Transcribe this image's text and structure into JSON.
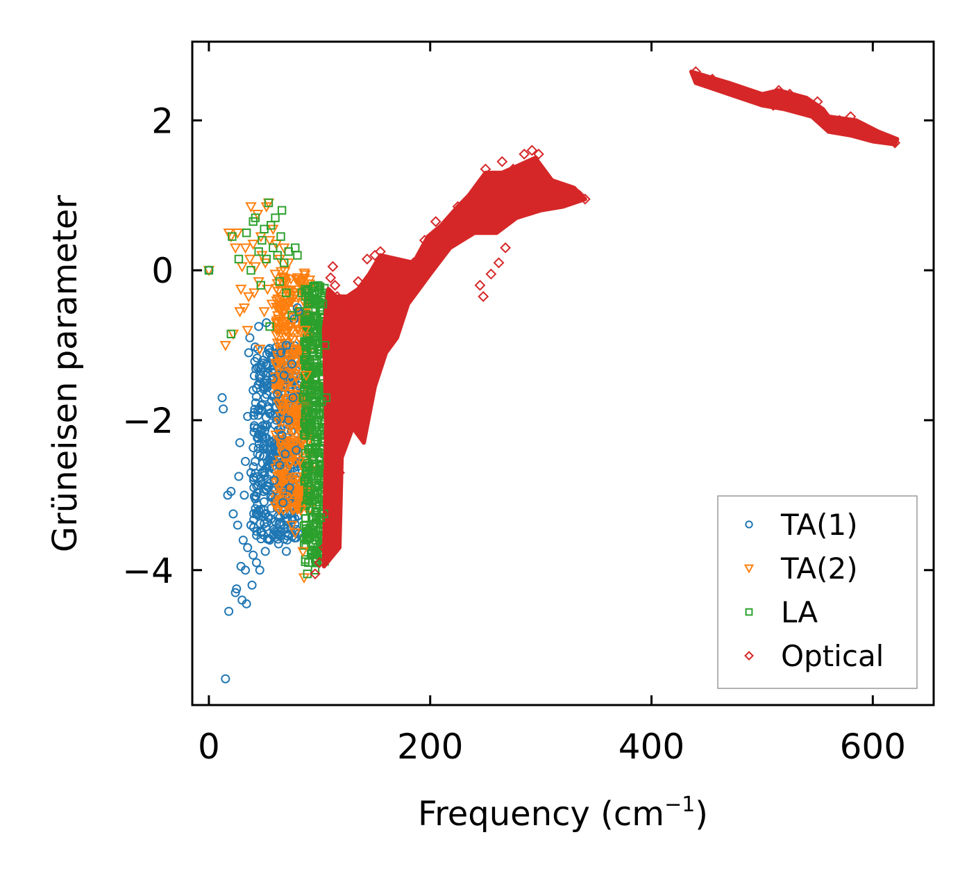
{
  "chart_data": {
    "type": "scatter",
    "title": "",
    "xlabel": "Frequency (cm",
    "xlabel_sup": "−1",
    "xlabel_suffix": ")",
    "ylabel": "Grüneisen parameter",
    "xlim": [
      -15,
      655
    ],
    "ylim": [
      -5.8,
      3.05
    ],
    "xticks": [
      0,
      200,
      400,
      600
    ],
    "xtick_labels": [
      "0",
      "200",
      "400",
      "600"
    ],
    "yticks": [
      -4,
      -2,
      0,
      2
    ],
    "ytick_labels": [
      "−4",
      "−2",
      "0",
      "2"
    ],
    "grid": false,
    "legend_position": "bottom-right",
    "series": [
      {
        "name": "TA(1)",
        "marker": "circle",
        "color": "#1f77b4",
        "points": [
          [
            0,
            0.0
          ],
          [
            12,
            -1.7
          ],
          [
            13,
            -1.85
          ],
          [
            15,
            -5.45
          ],
          [
            17,
            -3.0
          ],
          [
            18,
            -4.55
          ],
          [
            20,
            -2.95
          ],
          [
            22,
            -3.25
          ],
          [
            24,
            -4.3
          ],
          [
            25,
            -4.25
          ],
          [
            26,
            -3.4
          ],
          [
            27,
            -2.75
          ],
          [
            28,
            -2.3
          ],
          [
            29,
            -3.95
          ],
          [
            30,
            -4.4
          ],
          [
            31,
            -3.6
          ],
          [
            32,
            -3.0
          ],
          [
            33,
            -4.0
          ],
          [
            33,
            -2.55
          ],
          [
            34,
            -4.45
          ],
          [
            35,
            -3.7
          ],
          [
            35,
            -1.95
          ],
          [
            36,
            -1.1
          ],
          [
            37,
            -0.9
          ],
          [
            38,
            -3.4
          ],
          [
            38,
            -2.7
          ],
          [
            39,
            -4.2
          ],
          [
            40,
            -3.8
          ],
          [
            40,
            -1.6
          ],
          [
            41,
            -2.1
          ],
          [
            42,
            -3.05
          ],
          [
            43,
            -3.9
          ],
          [
            44,
            -2.45
          ],
          [
            45,
            -0.75
          ],
          [
            46,
            -4.0
          ],
          [
            47,
            -3.5
          ],
          [
            48,
            -2.85
          ],
          [
            48,
            -2.2
          ],
          [
            49,
            -1.2
          ],
          [
            50,
            -3.2
          ],
          [
            51,
            -3.75
          ],
          [
            52,
            -0.7
          ],
          [
            53,
            -2.55
          ],
          [
            54,
            -1.85
          ],
          [
            55,
            -3.6
          ],
          [
            56,
            -3.0
          ],
          [
            57,
            -2.3
          ],
          [
            58,
            -1.45
          ],
          [
            59,
            -2.8
          ],
          [
            60,
            -3.35
          ],
          [
            61,
            -2.0
          ],
          [
            62,
            -1.65
          ],
          [
            63,
            -3.65
          ],
          [
            64,
            -2.6
          ],
          [
            65,
            -1.1
          ],
          [
            66,
            -2.2
          ],
          [
            67,
            -3.1
          ],
          [
            68,
            -1.4
          ],
          [
            69,
            -2.45
          ],
          [
            70,
            -3.75
          ],
          [
            70,
            -1.0
          ],
          [
            72,
            -2.0
          ],
          [
            73,
            -2.9
          ],
          [
            74,
            -3.45
          ],
          [
            75,
            -1.25
          ],
          [
            76,
            -1.7
          ],
          [
            77,
            -0.65
          ],
          [
            78,
            -3.5
          ],
          [
            79,
            -2.4
          ],
          [
            80,
            -0.5
          ],
          [
            81,
            -0.55
          ]
        ],
        "cluster": {
          "x_range": [
            40,
            82
          ],
          "y_range": [
            -3.6,
            -1.0
          ],
          "center": [
            60,
            -2.2
          ]
        }
      },
      {
        "name": "TA(2)",
        "marker": "triangle-down",
        "color": "#ff7f0e",
        "points": [
          [
            0,
            0.0
          ],
          [
            15,
            -1.0
          ],
          [
            18,
            0.5
          ],
          [
            20,
            0.45
          ],
          [
            22,
            -0.85
          ],
          [
            24,
            0.3
          ],
          [
            26,
            0.5
          ],
          [
            28,
            -0.55
          ],
          [
            29,
            -0.25
          ],
          [
            30,
            0.05
          ],
          [
            32,
            -0.5
          ],
          [
            33,
            0.3
          ],
          [
            35,
            -0.8
          ],
          [
            36,
            -0.35
          ],
          [
            37,
            0.15
          ],
          [
            38,
            0.85
          ],
          [
            40,
            0.35
          ],
          [
            41,
            -0.3
          ],
          [
            42,
            0.05
          ],
          [
            44,
            0.75
          ],
          [
            45,
            -0.15
          ],
          [
            46,
            -1.05
          ],
          [
            47,
            0.45
          ],
          [
            48,
            0.2
          ],
          [
            50,
            -0.55
          ],
          [
            51,
            0.1
          ],
          [
            52,
            0.85
          ],
          [
            53,
            -0.25
          ],
          [
            54,
            0.9
          ],
          [
            55,
            0.4
          ],
          [
            57,
            -0.45
          ],
          [
            58,
            0.55
          ],
          [
            60,
            -0.05
          ],
          [
            61,
            0.35
          ],
          [
            63,
            -0.65
          ],
          [
            64,
            0.15
          ],
          [
            66,
            -0.35
          ],
          [
            68,
            0.3
          ],
          [
            70,
            -0.5
          ],
          [
            72,
            0.1
          ],
          [
            74,
            -0.75
          ],
          [
            75,
            -3.4
          ],
          [
            76,
            -0.3
          ],
          [
            78,
            -3.5
          ],
          [
            80,
            -3.0
          ],
          [
            82,
            -2.55
          ],
          [
            83,
            -3.2
          ],
          [
            85,
            -3.75
          ],
          [
            86,
            -4.1
          ],
          [
            87,
            -0.8
          ],
          [
            88,
            -1.4
          ]
        ],
        "cluster": {
          "x_range": [
            60,
            92
          ],
          "y_range": [
            -3.2,
            0.0
          ],
          "center": [
            76,
            -1.4
          ]
        }
      },
      {
        "name": "LA",
        "marker": "square",
        "color": "#2ca02c",
        "points": [
          [
            0,
            0.0
          ],
          [
            20,
            -0.85
          ],
          [
            21,
            0.45
          ],
          [
            27,
            0.15
          ],
          [
            34,
            0.5
          ],
          [
            38,
            0.0
          ],
          [
            40,
            0.65
          ],
          [
            42,
            0.7
          ],
          [
            45,
            0.25
          ],
          [
            47,
            -0.2
          ],
          [
            48,
            0.4
          ],
          [
            50,
            0.55
          ],
          [
            52,
            0.15
          ],
          [
            54,
            0.9
          ],
          [
            55,
            -0.75
          ],
          [
            56,
            0.6
          ],
          [
            58,
            0.3
          ],
          [
            60,
            0.7
          ],
          [
            62,
            0.2
          ],
          [
            64,
            -0.15
          ],
          [
            65,
            0.45
          ],
          [
            66,
            0.8
          ],
          [
            68,
            0.1
          ],
          [
            70,
            -0.3
          ],
          [
            72,
            0.25
          ],
          [
            75,
            -0.6
          ],
          [
            78,
            0.3
          ],
          [
            80,
            0.2
          ],
          [
            82,
            -0.55
          ],
          [
            84,
            -0.3
          ],
          [
            85,
            -1.7
          ],
          [
            87,
            -2.8
          ],
          [
            88,
            -3.6
          ],
          [
            89,
            -4.05
          ],
          [
            90,
            -3.9
          ],
          [
            92,
            -2.3
          ],
          [
            93,
            -3.3
          ],
          [
            94,
            -3.65
          ],
          [
            95,
            -1.7
          ],
          [
            96,
            -4.0
          ],
          [
            97,
            -3.75
          ],
          [
            98,
            -0.8
          ],
          [
            100,
            -2.6
          ],
          [
            101,
            -3.3
          ],
          [
            102,
            -1.75
          ],
          [
            103,
            -0.45
          ],
          [
            104,
            -3.25
          ],
          [
            105,
            -1.0
          ],
          [
            106,
            -1.7
          ]
        ],
        "cluster": {
          "x_range": [
            86,
            105
          ],
          "y_range": [
            -3.9,
            -0.2
          ],
          "center": [
            96,
            -2.0
          ]
        }
      },
      {
        "name": "Optical",
        "marker": "diamond",
        "color": "#d62728",
        "points": [
          [
            96,
            -4.05
          ],
          [
            100,
            -3.9
          ],
          [
            104,
            -3.7
          ],
          [
            108,
            -3.2
          ],
          [
            110,
            -0.1
          ],
          [
            112,
            0.05
          ],
          [
            114,
            -0.2
          ],
          [
            116,
            -0.35
          ],
          [
            118,
            -2.7
          ],
          [
            120,
            -1.0
          ],
          [
            128,
            -0.45
          ],
          [
            135,
            -0.15
          ],
          [
            143,
            0.15
          ],
          [
            150,
            0.2
          ],
          [
            155,
            0.25
          ],
          [
            160,
            -0.15
          ],
          [
            170,
            0.05
          ],
          [
            185,
            0.1
          ],
          [
            195,
            0.4
          ],
          [
            205,
            0.65
          ],
          [
            215,
            0.55
          ],
          [
            225,
            0.85
          ],
          [
            235,
            0.95
          ],
          [
            240,
            1.0
          ],
          [
            245,
            -0.2
          ],
          [
            248,
            -0.35
          ],
          [
            250,
            1.35
          ],
          [
            255,
            -0.05
          ],
          [
            260,
            1.25
          ],
          [
            262,
            0.1
          ],
          [
            265,
            1.45
          ],
          [
            268,
            0.3
          ],
          [
            275,
            1.35
          ],
          [
            285,
            1.55
          ],
          [
            292,
            1.6
          ],
          [
            298,
            1.55
          ],
          [
            305,
            1.15
          ],
          [
            315,
            1.1
          ],
          [
            325,
            1.05
          ],
          [
            335,
            1.0
          ],
          [
            340,
            0.95
          ],
          [
            440,
            2.65
          ],
          [
            455,
            2.55
          ],
          [
            470,
            2.45
          ],
          [
            485,
            2.35
          ],
          [
            500,
            2.25
          ],
          [
            510,
            2.2
          ],
          [
            515,
            2.4
          ],
          [
            525,
            2.35
          ],
          [
            530,
            2.3
          ],
          [
            540,
            2.2
          ],
          [
            550,
            2.25
          ],
          [
            555,
            2.0
          ],
          [
            560,
            1.95
          ],
          [
            570,
            2.0
          ],
          [
            580,
            2.05
          ],
          [
            590,
            1.9
          ],
          [
            600,
            1.8
          ],
          [
            610,
            1.75
          ],
          [
            620,
            1.7
          ]
        ],
        "cluster_polygons": [
          [
            [
              104,
              -3.95
            ],
            [
              118,
              -3.7
            ],
            [
              120,
              -2.5
            ],
            [
              130,
              -2.1
            ],
            [
              140,
              -2.3
            ],
            [
              150,
              -1.55
            ],
            [
              160,
              -1.1
            ],
            [
              170,
              -0.9
            ],
            [
              180,
              -0.45
            ],
            [
              200,
              -0.05
            ],
            [
              218,
              0.3
            ],
            [
              240,
              0.5
            ],
            [
              260,
              0.5
            ],
            [
              278,
              0.7
            ],
            [
              300,
              0.8
            ],
            [
              320,
              0.85
            ],
            [
              340,
              0.95
            ],
            [
              330,
              1.1
            ],
            [
              310,
              1.2
            ],
            [
              295,
              1.5
            ],
            [
              280,
              1.4
            ],
            [
              265,
              1.3
            ],
            [
              250,
              1.3
            ],
            [
              235,
              1.0
            ],
            [
              225,
              0.85
            ],
            [
              210,
              0.6
            ],
            [
              198,
              0.45
            ],
            [
              185,
              0.1
            ],
            [
              170,
              0.15
            ],
            [
              155,
              0.2
            ],
            [
              145,
              -0.05
            ],
            [
              135,
              -0.25
            ],
            [
              125,
              -0.35
            ],
            [
              115,
              -0.35
            ],
            [
              108,
              -0.25
            ],
            [
              104,
              -0.8
            ],
            [
              106,
              -2.0
            ]
          ],
          [
            [
              436,
              2.65
            ],
            [
              470,
              2.5
            ],
            [
              500,
              2.35
            ],
            [
              515,
              2.4
            ],
            [
              540,
              2.3
            ],
            [
              555,
              2.15
            ],
            [
              560,
              2.05
            ],
            [
              585,
              2.0
            ],
            [
              605,
              1.85
            ],
            [
              622,
              1.75
            ],
            [
              620,
              1.68
            ],
            [
              600,
              1.72
            ],
            [
              580,
              1.8
            ],
            [
              560,
              1.85
            ],
            [
              545,
              2.05
            ],
            [
              520,
              2.15
            ],
            [
              500,
              2.2
            ],
            [
              470,
              2.35
            ],
            [
              440,
              2.5
            ]
          ]
        ]
      }
    ],
    "legend": [
      "TA(1)",
      "TA(2)",
      "LA",
      "Optical"
    ]
  }
}
